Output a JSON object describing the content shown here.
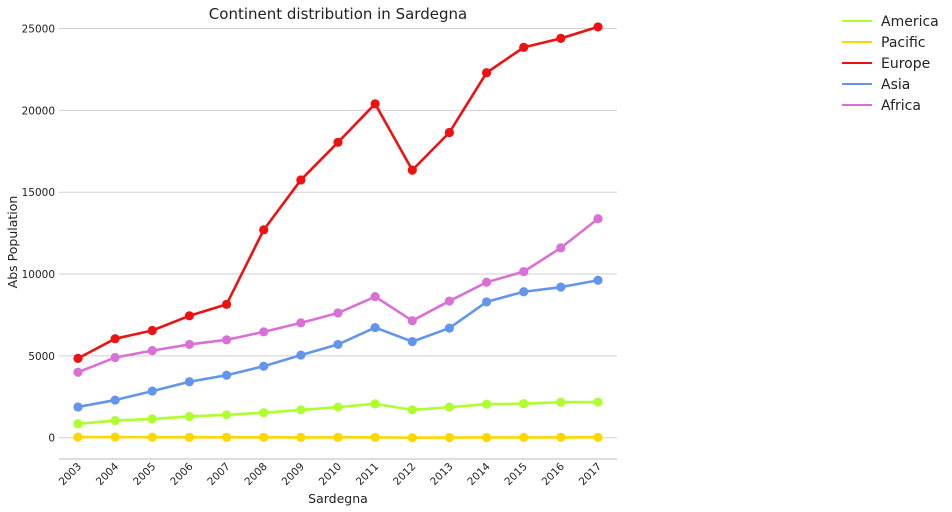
{
  "chart_data": {
    "type": "line",
    "title": "Continent distribution in Sardegna",
    "xlabel": "Sardegna",
    "ylabel": "Abs Population",
    "x": [
      "2003",
      "2004",
      "2005",
      "2006",
      "2007",
      "2008",
      "2009",
      "2010",
      "2011",
      "2012",
      "2013",
      "2014",
      "2015",
      "2016",
      "2017"
    ],
    "y_ticks": [
      "0",
      "5000",
      "10000",
      "15000",
      "20000",
      "25000"
    ],
    "ylim": [
      -1300,
      26500
    ],
    "grid": "horizontal",
    "legend_position": "outside-top-right",
    "series": [
      {
        "name": "America",
        "color": "#adff2f",
        "values": [
          850,
          1050,
          1150,
          1300,
          1400,
          1530,
          1700,
          1870,
          2070,
          1700,
          1870,
          2050,
          2080,
          2170,
          2180
        ]
      },
      {
        "name": "Pacific",
        "color": "#ffd700",
        "values": [
          40,
          40,
          30,
          25,
          25,
          25,
          20,
          25,
          25,
          0,
          10,
          15,
          20,
          20,
          25
        ]
      },
      {
        "name": "Europe",
        "color": "#ee1111",
        "values": [
          4850,
          6050,
          6550,
          7450,
          8150,
          12700,
          15750,
          18050,
          20400,
          16350,
          18650,
          22300,
          23850,
          24400,
          25100
        ]
      },
      {
        "name": "Asia",
        "color": "#6495ed",
        "values": [
          1880,
          2300,
          2850,
          3420,
          3820,
          4370,
          5050,
          5700,
          6730,
          5870,
          6700,
          8300,
          8920,
          9200,
          9620
        ]
      },
      {
        "name": "Africa",
        "color": "#da70d6",
        "values": [
          4000,
          4900,
          5320,
          5700,
          5980,
          6470,
          7020,
          7620,
          8620,
          7150,
          8350,
          9500,
          10150,
          11600,
          13380
        ]
      }
    ]
  }
}
